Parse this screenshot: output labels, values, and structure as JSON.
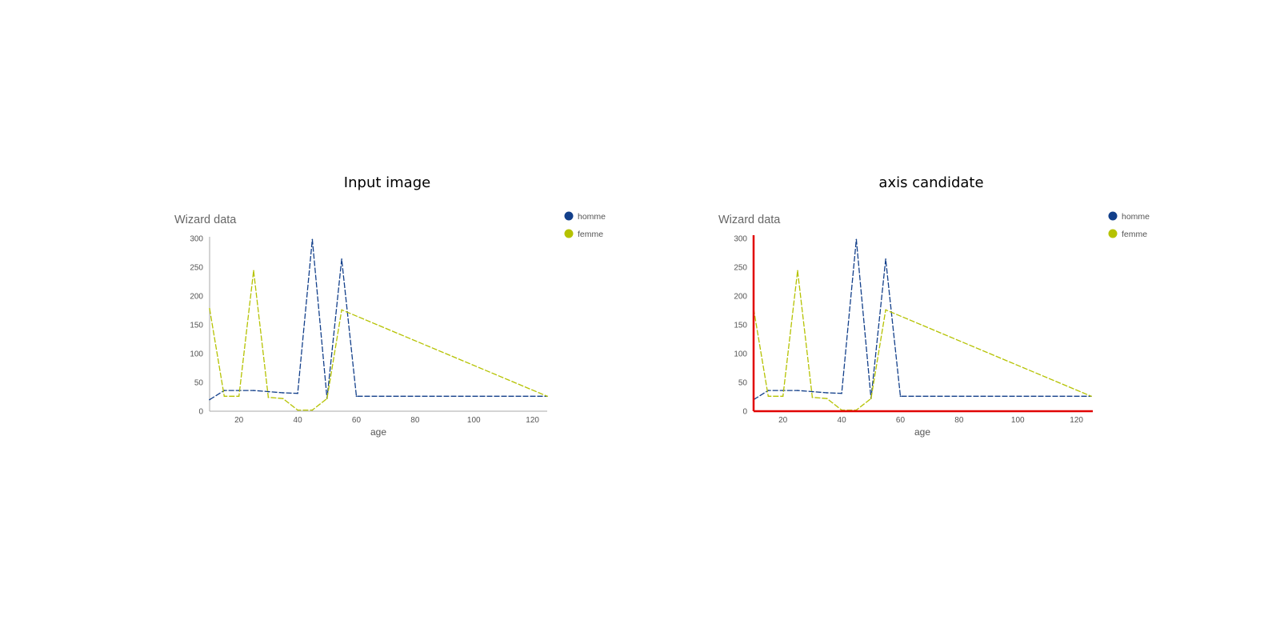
{
  "panels": [
    {
      "title": "Input image"
    },
    {
      "title": "axis candidate"
    }
  ],
  "colors": {
    "homme": "#123f8a",
    "femme": "#b5c200",
    "axis": "#aaaaaa",
    "axis_highlight": "#e10000"
  },
  "chart_data": [
    {
      "type": "line",
      "title": "Wizard data",
      "xlabel": "age",
      "ylabel": "",
      "xlim": [
        10,
        125
      ],
      "ylim": [
        0,
        300
      ],
      "xticks": [
        20,
        40,
        60,
        80,
        100,
        120
      ],
      "yticks": [
        0,
        50,
        100,
        150,
        200,
        250,
        300
      ],
      "legend_position": "top-right",
      "grid": false,
      "series": [
        {
          "name": "homme",
          "color": "#123f8a",
          "x": [
            10,
            15,
            20,
            25,
            30,
            35,
            40,
            45,
            50,
            55,
            60,
            125
          ],
          "y": [
            20,
            36,
            36,
            36,
            34,
            32,
            31,
            298,
            22,
            264,
            26,
            26
          ]
        },
        {
          "name": "femme",
          "color": "#b5c200",
          "x": [
            10,
            15,
            20,
            25,
            30,
            35,
            40,
            45,
            50,
            55,
            125
          ],
          "y": [
            178,
            26,
            26,
            244,
            24,
            22,
            2,
            2,
            22,
            176,
            26
          ]
        }
      ]
    },
    {
      "type": "line",
      "title": "Wizard data",
      "xlabel": "age",
      "ylabel": "",
      "xlim": [
        10,
        125
      ],
      "ylim": [
        0,
        300
      ],
      "xticks": [
        20,
        40,
        60,
        80,
        100,
        120
      ],
      "yticks": [
        0,
        50,
        100,
        150,
        200,
        250,
        300
      ],
      "legend_position": "top-right",
      "grid": false,
      "axis_highlight": true,
      "series": [
        {
          "name": "homme",
          "color": "#123f8a",
          "x": [
            10,
            15,
            20,
            25,
            30,
            35,
            40,
            45,
            50,
            55,
            60,
            125
          ],
          "y": [
            20,
            36,
            36,
            36,
            34,
            32,
            31,
            298,
            22,
            264,
            26,
            26
          ]
        },
        {
          "name": "femme",
          "color": "#b5c200",
          "x": [
            10,
            15,
            20,
            25,
            30,
            35,
            40,
            45,
            50,
            55,
            125
          ],
          "y": [
            178,
            26,
            26,
            244,
            24,
            22,
            2,
            2,
            22,
            176,
            26
          ]
        }
      ]
    }
  ]
}
